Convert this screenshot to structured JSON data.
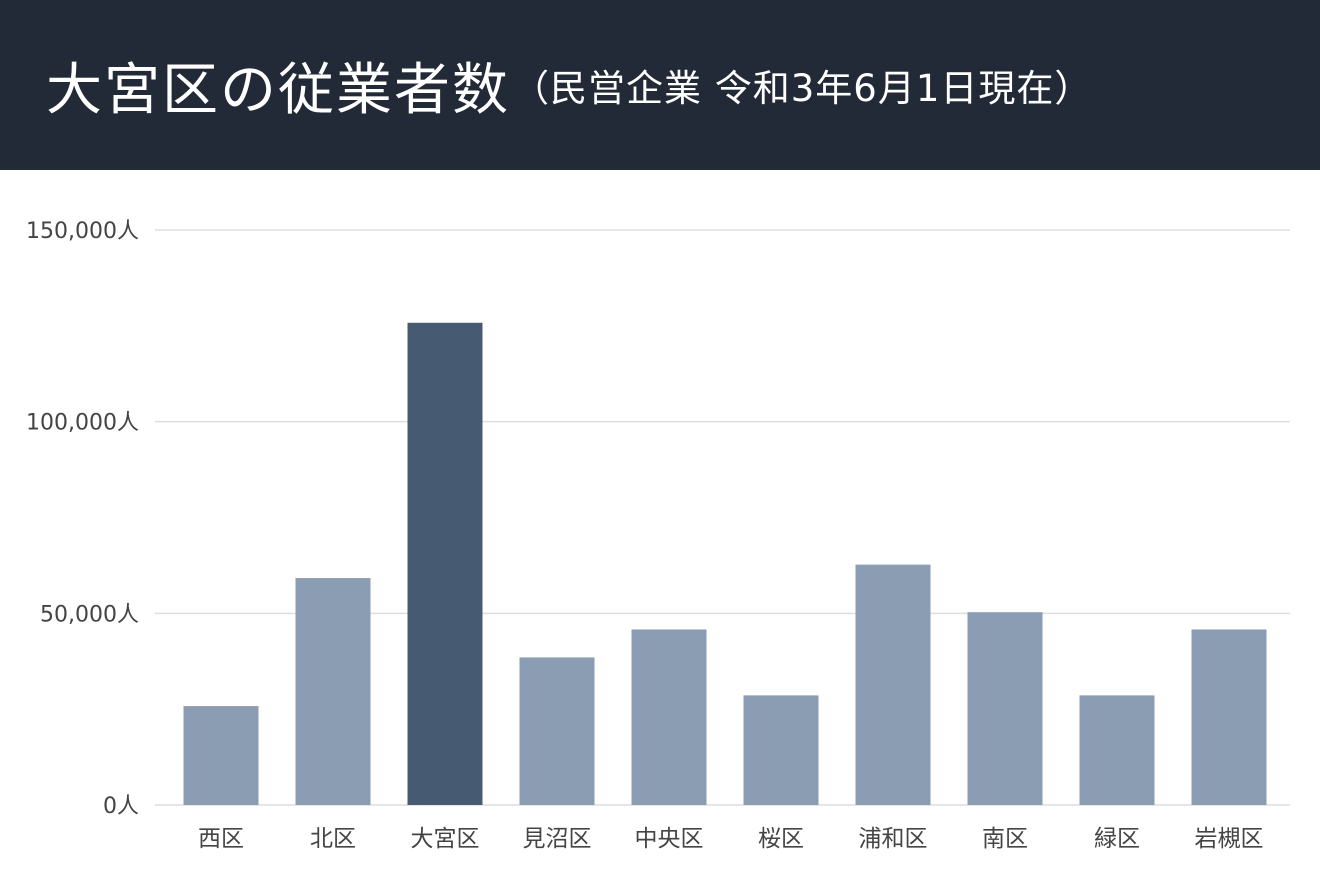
{
  "header": {
    "title": "大宮区の従業者数",
    "subtitle": "（民営企業 令和3年6月1日現在）"
  },
  "colors": {
    "header_bg": "#212a36",
    "bar_default": "#8a9db3",
    "bar_highlight": "#465b72",
    "grid": "#dddddd"
  },
  "chart_data": {
    "type": "bar",
    "title": "大宮区の従業者数（民営企業 令和3年6月1日現在）",
    "categories": [
      "西区",
      "北区",
      "大宮区",
      "見沼区",
      "中央区",
      "桜区",
      "浦和区",
      "南区",
      "緑区",
      "岩槻区"
    ],
    "values": [
      25800,
      59200,
      125800,
      38500,
      45800,
      28600,
      62700,
      50300,
      28600,
      45800
    ],
    "highlight": "大宮区",
    "ylim": [
      0,
      150000
    ],
    "yticks": [
      0,
      50000,
      100000,
      150000
    ],
    "ytick_labels": [
      "0人",
      "50,000人",
      "100,000人",
      "150,000人"
    ],
    "grid": true,
    "legend": "none"
  }
}
